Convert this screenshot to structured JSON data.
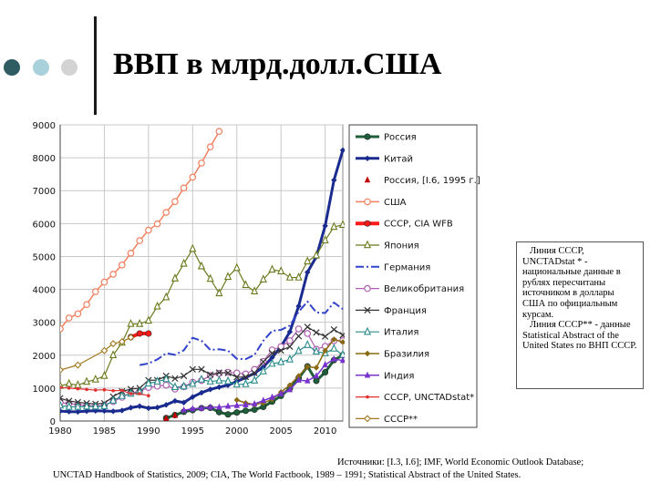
{
  "slide": {
    "title": "ВВП в млрд.долл.США",
    "bullet_colors": [
      "#2f5b63",
      "#a9d1dc",
      "#d3d3d3"
    ]
  },
  "note": {
    "para1": "Линия СССР, UNCTADstat * - национальные данные в рублях пересчитаны источником в доллары США по официальным курсам.",
    "para2": "Линия СССР** - данные Statistical Abstract of the United States по ВНП СССР."
  },
  "sources": {
    "line1": "Источники: [I.3, I.6]; IMF, World Economic Outlook Database;",
    "line2": "UNCTAD Handbook of Statistics, 2009; CIA, The World Factbook, 1989 – 1991; Statistical Abstract of the United States."
  },
  "chart_data": {
    "type": "line",
    "xlim": [
      1980,
      2012
    ],
    "ylim": [
      0,
      9000
    ],
    "x_ticks": [
      1980,
      1985,
      1990,
      1995,
      2000,
      2005,
      2010
    ],
    "y_ticks": [
      0,
      1000,
      2000,
      3000,
      4000,
      5000,
      6000,
      7000,
      8000,
      9000
    ],
    "grid": true,
    "legend_position": "right",
    "series": [
      {
        "name": "Россия",
        "color": "#1e5e3a",
        "marker": "circle",
        "width": 3,
        "x": [
          1992,
          1993,
          1994,
          1995,
          1996,
          1997,
          1998,
          1999,
          2000,
          2001,
          2002,
          2003,
          2004,
          2005,
          2006,
          2007,
          2008,
          2009,
          2010,
          2011,
          2012
        ],
        "y": [
          90,
          180,
          280,
          330,
          390,
          400,
          270,
          200,
          260,
          310,
          345,
          430,
          590,
          765,
          990,
          1300,
          1660,
          1220,
          1480,
          1850,
          2000
        ]
      },
      {
        "name": "Китай",
        "color": "#1a2b8f",
        "marker": "diamond",
        "width": 3,
        "x": [
          1980,
          1981,
          1982,
          1983,
          1984,
          1985,
          1986,
          1987,
          1988,
          1989,
          1990,
          1991,
          1992,
          1993,
          1994,
          1995,
          1996,
          1997,
          1998,
          1999,
          2000,
          2001,
          2002,
          2003,
          2004,
          2005,
          2006,
          2007,
          2008,
          2009,
          2010,
          2011,
          2012
        ],
        "y": [
          300,
          285,
          280,
          300,
          310,
          305,
          295,
          320,
          405,
          450,
          390,
          410,
          490,
          610,
          560,
          730,
          860,
          960,
          1030,
          1090,
          1200,
          1320,
          1450,
          1640,
          1930,
          2260,
          2710,
          3490,
          4520,
          4990,
          5930,
          7320,
          8230
        ]
      },
      {
        "name": "Россия, [I.6, 1995 г.]",
        "color": "#c00000",
        "marker": "triangle",
        "width": 0,
        "x": [
          1992,
          1993
        ],
        "y": [
          80,
          170
        ]
      },
      {
        "name": "США",
        "color": "#f08060",
        "marker": "circle-open",
        "width": 1.5,
        "x": [
          1980,
          1981,
          1982,
          1983,
          1984,
          1985,
          1986,
          1987,
          1988,
          1989,
          1990,
          1991,
          1992,
          1993,
          1994,
          1995,
          1996,
          1997,
          1998
        ],
        "y": [
          2800,
          3130,
          3260,
          3540,
          3930,
          4220,
          4460,
          4740,
          5100,
          5480,
          5800,
          5990,
          6340,
          6670,
          7080,
          7410,
          7840,
          8330,
          8800
        ]
      },
      {
        "name": "СССР, CIA WFB",
        "color": "#ff1a1a",
        "marker": "circle",
        "width": 4,
        "x": [
          1988,
          1989,
          1990
        ],
        "y": [
          2550,
          2660,
          2660
        ]
      },
      {
        "name": "Япония",
        "color": "#6b7a1e",
        "marker": "triangle-open",
        "width": 1.2,
        "x": [
          1980,
          1981,
          1982,
          1983,
          1984,
          1985,
          1986,
          1987,
          1988,
          1989,
          1990,
          1991,
          1992,
          1993,
          1994,
          1995,
          1996,
          1997,
          1998,
          1999,
          2000,
          2001,
          2002,
          2003,
          2004,
          2005,
          2006,
          2007,
          2008,
          2009,
          2010,
          2011,
          2012
        ],
        "y": [
          1070,
          1130,
          1090,
          1190,
          1260,
          1370,
          2000,
          2380,
          2950,
          2950,
          3050,
          3480,
          3760,
          4330,
          4780,
          5230,
          4700,
          4320,
          3880,
          4380,
          4650,
          4130,
          3940,
          4300,
          4600,
          4550,
          4360,
          4360,
          4850,
          5030,
          5490,
          5900,
          5960
        ]
      },
      {
        "name": "Германия",
        "color": "#3344cc",
        "marker": "none",
        "dash": "9,3,2,3",
        "width": 2,
        "x": [
          1989,
          1990,
          1991,
          1992,
          1993,
          1994,
          1995,
          1996,
          1997,
          1998,
          1999,
          2000,
          2001,
          2002,
          2003,
          2004,
          2005,
          2006,
          2007,
          2008,
          2009,
          2010,
          2011,
          2012
        ],
        "y": [
          1700,
          1750,
          1870,
          2060,
          2010,
          2150,
          2530,
          2440,
          2160,
          2180,
          2140,
          1890,
          1880,
          2010,
          2440,
          2740,
          2770,
          2900,
          3320,
          3630,
          3300,
          3280,
          3600,
          3400
        ]
      },
      {
        "name": "Великобритания",
        "color": "#b060b0",
        "marker": "circle-open",
        "width": 1.2,
        "x": [
          1980,
          1981,
          1982,
          1983,
          1984,
          1985,
          1986,
          1987,
          1988,
          1989,
          1990,
          1991,
          1992,
          1993,
          1994,
          1995,
          1996,
          1997,
          1998,
          1999,
          2000,
          2001,
          2002,
          2003,
          2004,
          2005,
          2006,
          2007,
          2008,
          2009,
          2010,
          2011,
          2012
        ],
        "y": [
          560,
          530,
          500,
          470,
          450,
          480,
          590,
          720,
          860,
          900,
          1020,
          1060,
          1090,
          970,
          1040,
          1180,
          1230,
          1380,
          1450,
          1480,
          1460,
          1430,
          1570,
          1810,
          2160,
          2260,
          2440,
          2800,
          2660,
          2180,
          2270,
          2440,
          2440
        ]
      },
      {
        "name": "Франция",
        "color": "#333333",
        "marker": "x",
        "width": 1.2,
        "x": [
          1980,
          1981,
          1982,
          1983,
          1984,
          1985,
          1986,
          1987,
          1988,
          1989,
          1990,
          1991,
          1992,
          1993,
          1994,
          1995,
          1996,
          1997,
          1998,
          1999,
          2000,
          2001,
          2002,
          2003,
          2004,
          2005,
          2006,
          2007,
          2008,
          2009,
          2010,
          2011,
          2012
        ],
        "y": [
          690,
          610,
          570,
          540,
          520,
          540,
          740,
          900,
          970,
          1000,
          1240,
          1240,
          1370,
          1290,
          1370,
          1570,
          1570,
          1410,
          1470,
          1460,
          1330,
          1340,
          1460,
          1800,
          2060,
          2140,
          2260,
          2580,
          2860,
          2690,
          2570,
          2780,
          2610
        ]
      },
      {
        "name": "Италия",
        "color": "#2a8c8c",
        "marker": "triangle-open",
        "width": 1.2,
        "x": [
          1980,
          1981,
          1982,
          1983,
          1984,
          1985,
          1986,
          1987,
          1988,
          1989,
          1990,
          1991,
          1992,
          1993,
          1994,
          1995,
          1996,
          1997,
          1998,
          1999,
          2000,
          2001,
          2002,
          2003,
          2004,
          2005,
          2006,
          2007,
          2008,
          2009,
          2010,
          2011,
          2012
        ],
        "y": [
          470,
          430,
          430,
          440,
          440,
          450,
          620,
          760,
          830,
          880,
          1140,
          1200,
          1270,
          1030,
          1050,
          1130,
          1260,
          1200,
          1230,
          1210,
          1110,
          1120,
          1230,
          1510,
          1740,
          1790,
          1870,
          2130,
          2310,
          2110,
          2060,
          2200,
          2010
        ]
      },
      {
        "name": "Бразилия",
        "color": "#8a6a10",
        "marker": "diamond",
        "width": 1.5,
        "x": [
          2000,
          2001,
          2002,
          2003,
          2004,
          2005,
          2006,
          2007,
          2008,
          2009,
          2010,
          2011,
          2012
        ],
        "y": [
          640,
          550,
          500,
          550,
          660,
          880,
          1090,
          1370,
          1650,
          1620,
          2140,
          2480,
          2400
        ]
      },
      {
        "name": "Индия",
        "color": "#7733cc",
        "marker": "triangle",
        "width": 1.5,
        "x": [
          1994,
          1995,
          1996,
          1997,
          1998,
          1999,
          2000,
          2001,
          2002,
          2003,
          2004,
          2005,
          2006,
          2007,
          2008,
          2009,
          2010,
          2011,
          2012
        ],
        "y": [
          330,
          370,
          390,
          420,
          420,
          450,
          470,
          490,
          520,
          620,
          720,
          830,
          950,
          1240,
          1220,
          1370,
          1710,
          1880,
          1840
        ]
      },
      {
        "name": "СССР, UNCTADstat*",
        "color": "#e03030",
        "marker": "circle-small",
        "width": 1.2,
        "x": [
          1980,
          1981,
          1982,
          1983,
          1984,
          1985,
          1986,
          1987,
          1988,
          1989,
          1990
        ],
        "y": [
          1020,
          1000,
          980,
          960,
          940,
          950,
          920,
          930,
          830,
          830,
          770
        ]
      },
      {
        "name": "СССР**",
        "color": "#a07a20",
        "marker": "diamond-open",
        "width": 1.2,
        "x": [
          1980,
          1982,
          1985,
          1986,
          1987,
          1988
        ],
        "y": [
          1550,
          1700,
          2140,
          2350,
          2410,
          2540
        ]
      }
    ]
  }
}
